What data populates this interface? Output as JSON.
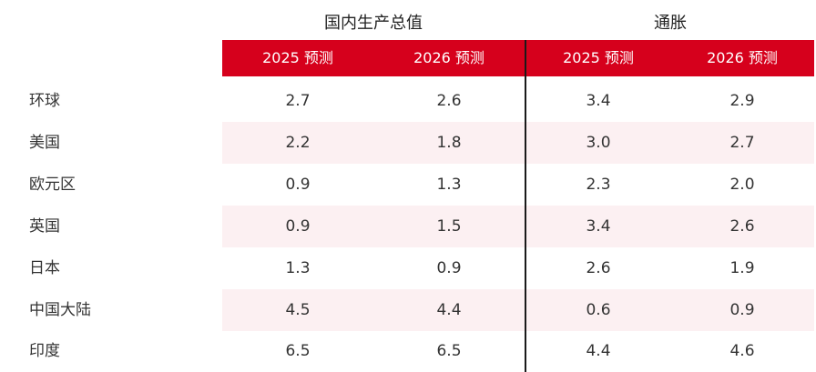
{
  "header_groups": {
    "gdp": "国内生产总值",
    "inflation": "通胀"
  },
  "columns": [
    "2025 预测",
    "2026 预测",
    "2025 预测",
    "2026 预测"
  ],
  "rows": [
    {
      "label": "环球",
      "values": [
        "2.7",
        "2.6",
        "3.4",
        "2.9"
      ]
    },
    {
      "label": "美国",
      "values": [
        "2.2",
        "1.8",
        "3.0",
        "2.7"
      ]
    },
    {
      "label": "欧元区",
      "values": [
        "0.9",
        "1.3",
        "2.3",
        "2.0"
      ]
    },
    {
      "label": "英国",
      "values": [
        "0.9",
        "1.5",
        "3.4",
        "2.6"
      ]
    },
    {
      "label": "日本",
      "values": [
        "1.3",
        "0.9",
        "2.6",
        "1.9"
      ]
    },
    {
      "label": "中国大陆",
      "values": [
        "4.5",
        "4.4",
        "0.6",
        "0.9"
      ]
    },
    {
      "label": "印度",
      "values": [
        "6.5",
        "6.5",
        "4.4",
        "4.6"
      ]
    }
  ],
  "colors": {
    "header_bg": "#d6001c",
    "header_text": "#ffffff",
    "row_shade": "#fcf0f2",
    "divider": "#1a1a1a"
  }
}
